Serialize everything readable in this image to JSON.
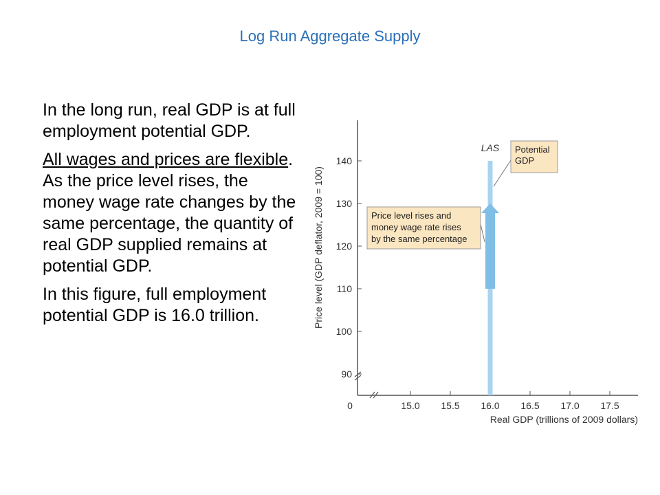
{
  "slide_title": "Log Run Aggregate Supply",
  "paragraphs": {
    "p1": "In the long run, real GDP is at full employment potential GDP.",
    "p2_underlined": "All wages and prices are flexible",
    "p2_rest": ". As the price level rises, the money wage rate changes by the same percentage, the quantity of real GDP supplied remains at potential GDP.",
    "p3": "In this figure, full employment potential GDP is 16.0 trillion."
  },
  "colors": {
    "title": "#2a6fb8",
    "las_line": "#a8d4f0",
    "arrow": "#7fbfe6",
    "callout_fill": "#fbe6c2",
    "callout_border": "#9a9a9a"
  },
  "chart_data": {
    "type": "line",
    "xlabel": "Real GDP (trillions of 2009 dollars)",
    "ylabel": "Price level (GDP deflator, 2009 = 100)",
    "xlim": [
      14.5,
      18.0
    ],
    "ylim": [
      85,
      145
    ],
    "x_ticks": [
      "15.0",
      "15.5",
      "16.0",
      "16.5",
      "17.0",
      "17.5"
    ],
    "y_ticks": [
      "90",
      "100",
      "110",
      "120",
      "130",
      "140"
    ],
    "origin_label": "0",
    "axis_breaks": true,
    "series": [
      {
        "name": "LAS",
        "x": [
          16.0,
          16.0
        ],
        "y": [
          85,
          140
        ]
      }
    ],
    "arrow": {
      "x": 16.0,
      "y_from": 110,
      "y_to": 130
    },
    "annotations": [
      {
        "text_lines": [
          "Potential",
          "GDP"
        ],
        "target_y": 134
      },
      {
        "text_lines": [
          "Price level rises and",
          "money wage rate rises",
          "by the same percentage"
        ],
        "target_y": 121
      }
    ]
  }
}
